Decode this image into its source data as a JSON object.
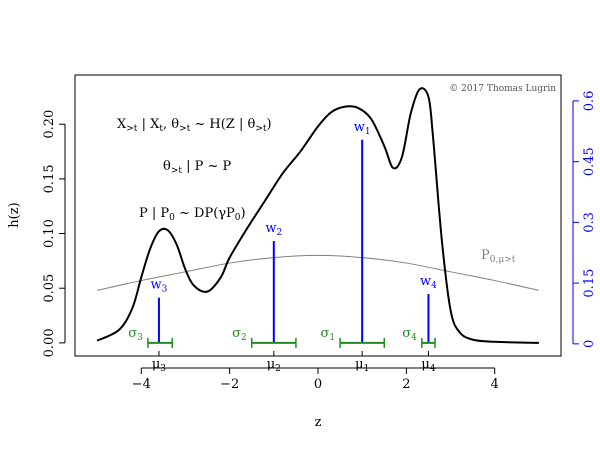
{
  "chart_data": {
    "type": "line",
    "xlabel": "z",
    "ylabel": "h(z)",
    "xlim": [
      -5.5,
      5.5
    ],
    "ylim": [
      -0.012,
      0.245
    ],
    "y2lim": [
      -0.03,
      0.664
    ],
    "xticks": [
      -4,
      -2,
      0,
      2,
      4
    ],
    "xtick_labels": [
      "−4",
      "−2",
      "0",
      "2",
      "4"
    ],
    "yticks": [
      0.0,
      0.05,
      0.1,
      0.15,
      0.2
    ],
    "ytick_labels": [
      "0.00",
      "0.05",
      "0.10",
      "0.15",
      "0.20"
    ],
    "y2ticks": [
      0,
      0.15,
      0.3,
      0.45,
      0.6
    ],
    "y2tick_labels": [
      "0",
      "0.15",
      "0.3",
      "0.45",
      "0.6"
    ],
    "grid": false,
    "copyright": "© 2017 Thomas Lugrin",
    "annotations": {
      "line1": "X>t | Xt, θ>t ~ H(Z | θ>t)",
      "line2": "θ>t | P ~ P",
      "line3": "P | P0 ~ DP(γP0)",
      "base_label": "P0,μ>t"
    },
    "density": {
      "x": [
        -5.0,
        -4.5,
        -4.2,
        -4.0,
        -3.8,
        -3.6,
        -3.4,
        -3.2,
        -3.0,
        -2.8,
        -2.5,
        -2.2,
        -2.0,
        -1.6,
        -1.2,
        -0.8,
        -0.4,
        0.0,
        0.3,
        0.6,
        0.9,
        1.2,
        1.5,
        1.7,
        1.9,
        2.1,
        2.3,
        2.5,
        2.6,
        2.8,
        3.0,
        3.2,
        3.5,
        4.0,
        5.0
      ],
      "y": [
        0.002,
        0.012,
        0.032,
        0.06,
        0.086,
        0.102,
        0.103,
        0.09,
        0.067,
        0.052,
        0.047,
        0.06,
        0.078,
        0.105,
        0.13,
        0.155,
        0.175,
        0.198,
        0.211,
        0.216,
        0.215,
        0.205,
        0.18,
        0.16,
        0.17,
        0.21,
        0.232,
        0.225,
        0.19,
        0.095,
        0.03,
        0.01,
        0.003,
        0.001,
        0.0
      ]
    },
    "base_measure": {
      "x": [
        -5.0,
        -4.0,
        -3.0,
        -2.0,
        -1.0,
        0.0,
        1.0,
        2.0,
        3.0,
        4.0,
        5.0
      ],
      "y": [
        0.048,
        0.057,
        0.065,
        0.073,
        0.078,
        0.08,
        0.078,
        0.073,
        0.065,
        0.057,
        0.048
      ]
    },
    "components": [
      {
        "mu": -3.6,
        "mu_label": "μ3",
        "weight": 0.114,
        "weight_label": "w3",
        "sigma_label": "σ3",
        "sigma_lo": -3.85,
        "sigma_hi": -3.3
      },
      {
        "mu": -1.0,
        "mu_label": "μ2",
        "weight": 0.254,
        "weight_label": "w2",
        "sigma_label": "σ2",
        "sigma_lo": -1.5,
        "sigma_hi": -0.5
      },
      {
        "mu": 1.0,
        "mu_label": "μ1",
        "weight": 0.504,
        "weight_label": "w1",
        "sigma_label": "σ1",
        "sigma_lo": 0.5,
        "sigma_hi": 1.5
      },
      {
        "mu": 2.5,
        "mu_label": "μ4",
        "weight": 0.123,
        "weight_label": "w4",
        "sigma_label": "σ4",
        "sigma_lo": 2.35,
        "sigma_hi": 2.65
      }
    ],
    "colors": {
      "density": "#000000",
      "base": "#808080",
      "weights": "#0000ff",
      "sigma": "#228b22"
    }
  }
}
